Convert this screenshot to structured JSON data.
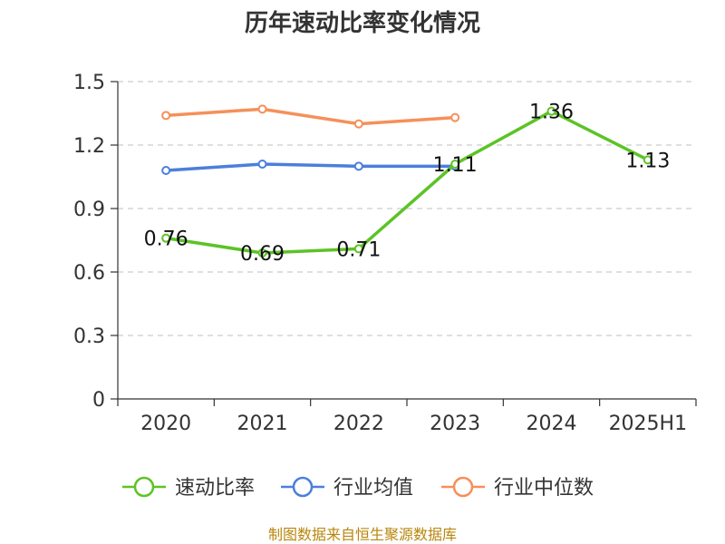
{
  "chart_data": {
    "type": "line",
    "title": "历年速动比率变化情况",
    "categories": [
      "2020",
      "2021",
      "2022",
      "2023",
      "2024",
      "2025H1"
    ],
    "ylim": [
      0,
      1.5
    ],
    "yticks": [
      "0",
      "0.3",
      "0.6",
      "0.9",
      "1.2",
      "1.5"
    ],
    "grid": true,
    "legend_position": "bottom",
    "series": [
      {
        "name": "速动比率",
        "color": "#5cc326",
        "values": [
          0.76,
          0.69,
          0.71,
          1.11,
          1.36,
          1.13
        ],
        "labels": [
          "0.76",
          "0.69",
          "0.71",
          "1.11",
          "1.36",
          "1.13"
        ]
      },
      {
        "name": "行业均值",
        "color": "#4c7fdc",
        "values": [
          1.08,
          1.11,
          1.1,
          1.1,
          null,
          null
        ]
      },
      {
        "name": "行业中位数",
        "color": "#f5905a",
        "values": [
          1.34,
          1.37,
          1.3,
          1.33,
          null,
          null
        ]
      }
    ]
  },
  "source": "制图数据来自恒生聚源数据库"
}
